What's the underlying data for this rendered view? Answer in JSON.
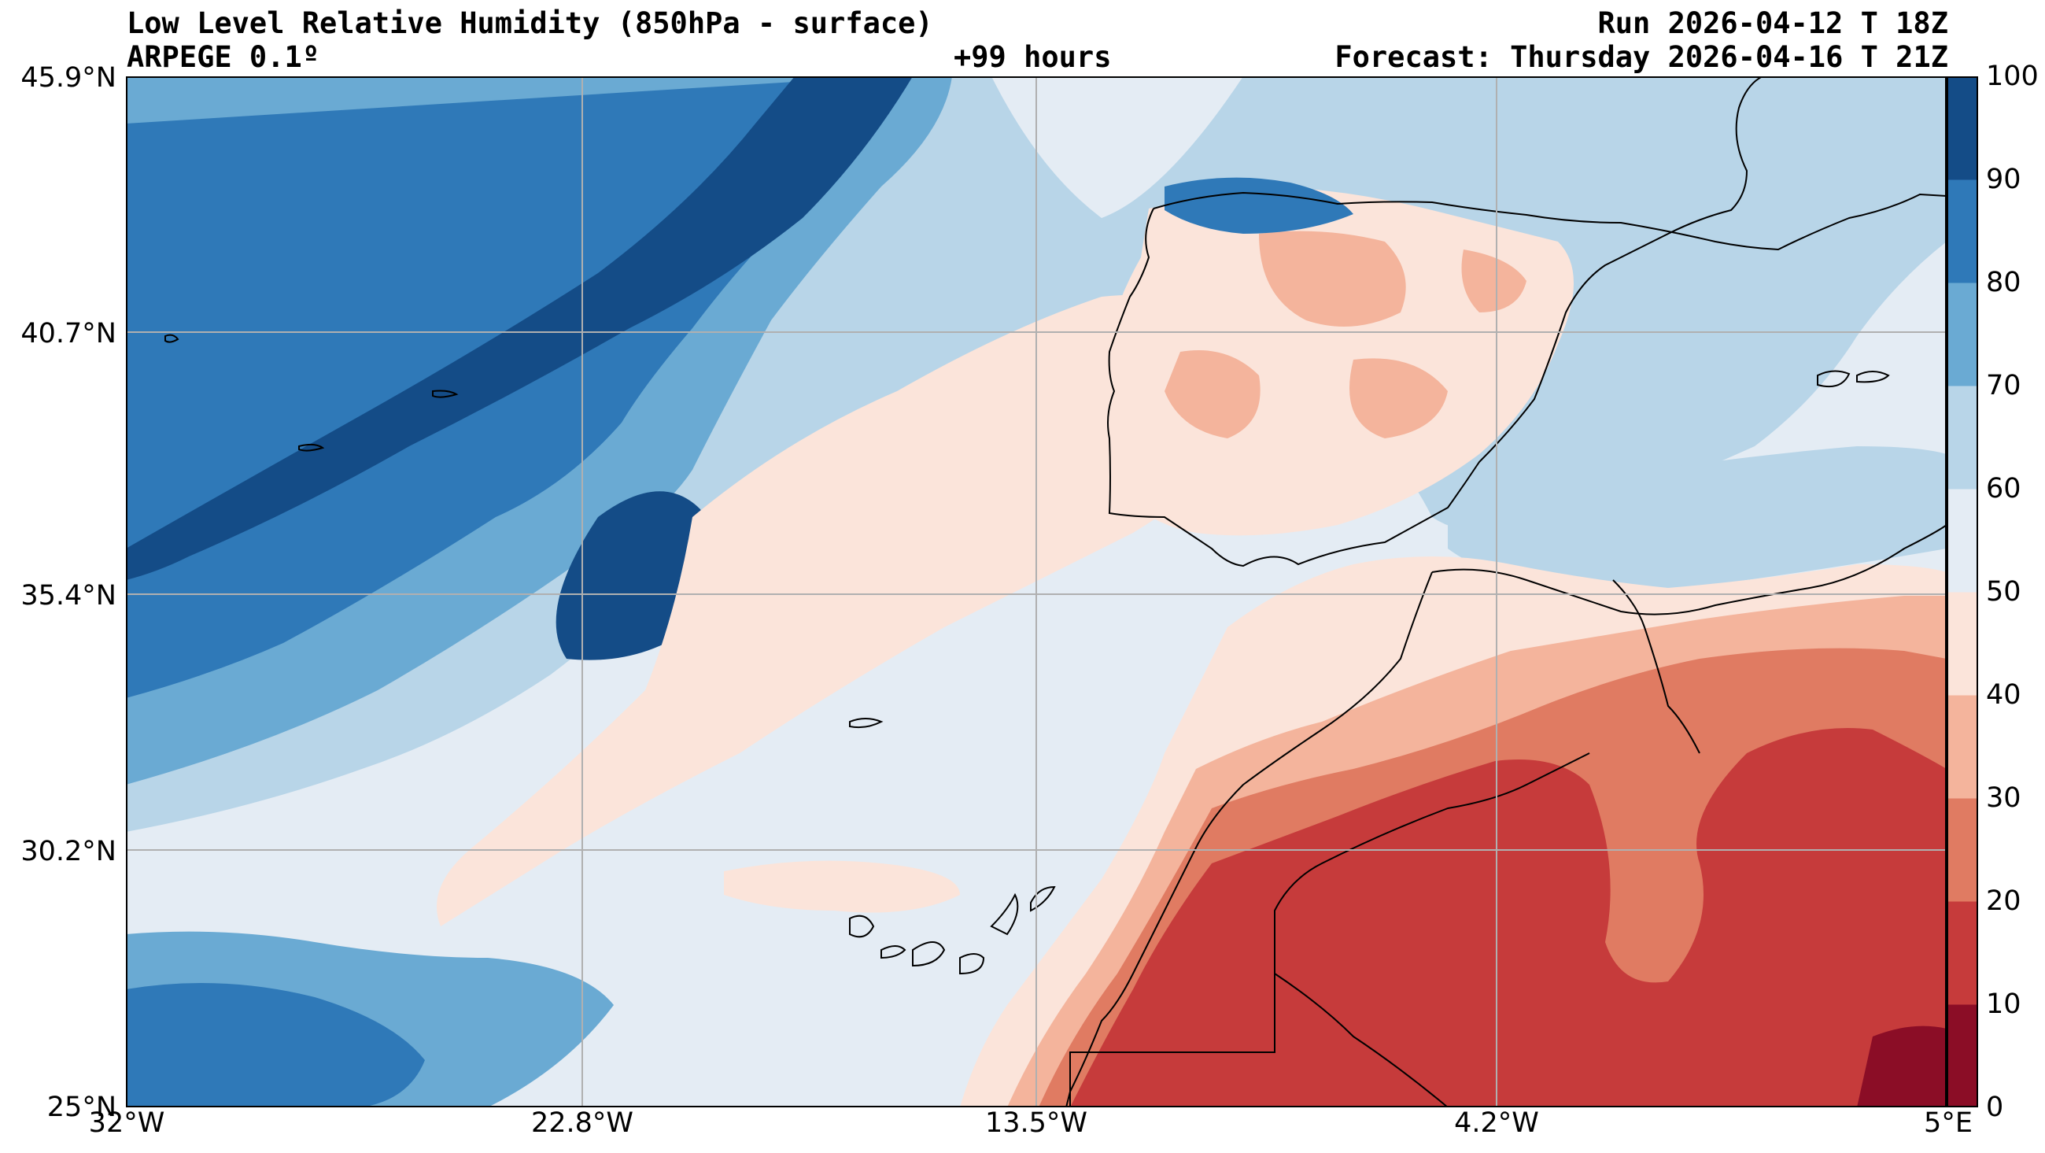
{
  "title": {
    "line1_left": "Low Level Relative Humidity (850hPa - surface)",
    "line2_left": "ARPEGE 0.1º",
    "line2_center": "+99 hours",
    "line1_right": "Run 2026-04-12 T 18Z",
    "line2_right": "Forecast: Thursday 2026-04-16 T 21Z"
  },
  "axes": {
    "lat_labels": [
      "45.9°N",
      "40.7°N",
      "35.4°N",
      "30.2°N",
      "25°N"
    ],
    "lon_labels": [
      "32°W",
      "22.8°W",
      "13.5°W",
      "4.2°W",
      "5°E"
    ],
    "lat_range": [
      25,
      45.9
    ],
    "lon_range": [
      -32,
      5
    ]
  },
  "colorbar": {
    "ticks": [
      "100",
      "90",
      "80",
      "70",
      "60",
      "50",
      "40",
      "30",
      "20",
      "10",
      "0"
    ],
    "levels": [
      0,
      10,
      20,
      30,
      40,
      50,
      60,
      70,
      80,
      90,
      100
    ],
    "colors": [
      "#8b0d26",
      "#c63b3b",
      "#e07b62",
      "#f4b49c",
      "#fbe4da",
      "#e4ecf4",
      "#b8d5e8",
      "#6aaad3",
      "#2f79b8",
      "#144c87"
    ]
  },
  "palette": {
    "c0": "#8b0d26",
    "c10": "#c63b3b",
    "c20": "#e07b62",
    "c30": "#f4b49c",
    "c40": "#fbe4da",
    "c50": "#e4ecf4",
    "c60": "#b8d5e8",
    "c70": "#6aaad3",
    "c80": "#2f79b8",
    "c90": "#144c87",
    "grid": "#b0b0b0",
    "coast": "#000000"
  },
  "regions": [
    "Atlantic Ocean",
    "Iberian Peninsula",
    "Morocco",
    "Algeria",
    "Canary Islands",
    "Madeira",
    "Azores",
    "Balearic Islands"
  ]
}
